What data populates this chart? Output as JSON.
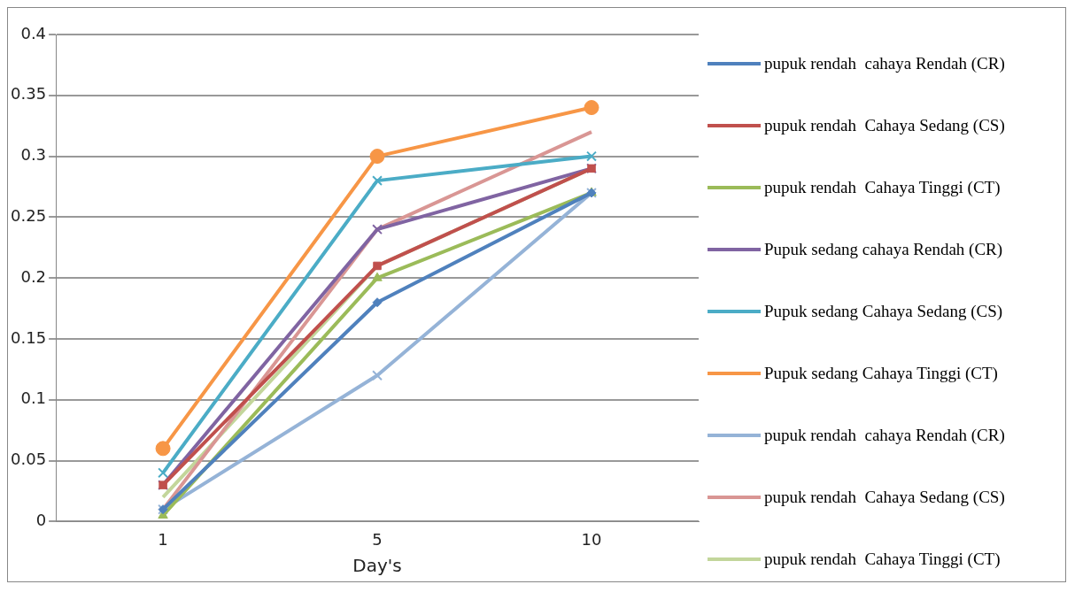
{
  "chart_data": {
    "type": "line",
    "xlabel": "Day's",
    "categories": [
      "1",
      "5",
      "10"
    ],
    "ylim": [
      0,
      0.4
    ],
    "yticks": [
      0,
      0.05,
      0.1,
      0.15,
      0.2,
      0.25,
      0.3,
      0.35,
      0.4
    ],
    "grid": "y",
    "legend": "right",
    "series": [
      {
        "name": "pupuk rendah  cahaya Rendah (CR)",
        "color": "#4f81bd",
        "marker": "diamond",
        "values": [
          0.01,
          0.18,
          0.27
        ]
      },
      {
        "name": "pupuk rendah  Cahaya Sedang (CS)",
        "color": "#c0504d",
        "marker": "square",
        "values": [
          0.03,
          0.21,
          0.29
        ]
      },
      {
        "name": "pupuk rendah  Cahaya Tinggi (CT)",
        "color": "#9bbb59",
        "marker": "triangle",
        "values": [
          0.005,
          0.2,
          0.27
        ]
      },
      {
        "name": "Pupuk sedang cahaya Rendah (CR)",
        "color": "#8064a2",
        "marker": "cross",
        "values": [
          0.03,
          0.24,
          0.29
        ]
      },
      {
        "name": "Pupuk sedang Cahaya Sedang (CS)",
        "color": "#4bacc6",
        "marker": "cross",
        "values": [
          0.04,
          0.28,
          0.3
        ]
      },
      {
        "name": "Pupuk sedang Cahaya Tinggi (CT)",
        "color": "#f79646",
        "marker": "circle",
        "values": [
          0.06,
          0.3,
          0.34
        ]
      },
      {
        "name": "pupuk rendah  cahaya Rendah (CR)",
        "color": "#95b3d7",
        "marker": "cross",
        "values": [
          0.01,
          0.12,
          0.27
        ]
      },
      {
        "name": "pupuk rendah  Cahaya Sedang (CS)",
        "color": "#d99694",
        "marker": "none",
        "values": [
          0.01,
          0.24,
          0.32
        ]
      },
      {
        "name": "pupuk rendah  Cahaya Tinggi (CT)",
        "color": "#c3d69b",
        "marker": "none",
        "values": [
          0.02,
          0.21,
          0.29
        ]
      }
    ]
  }
}
